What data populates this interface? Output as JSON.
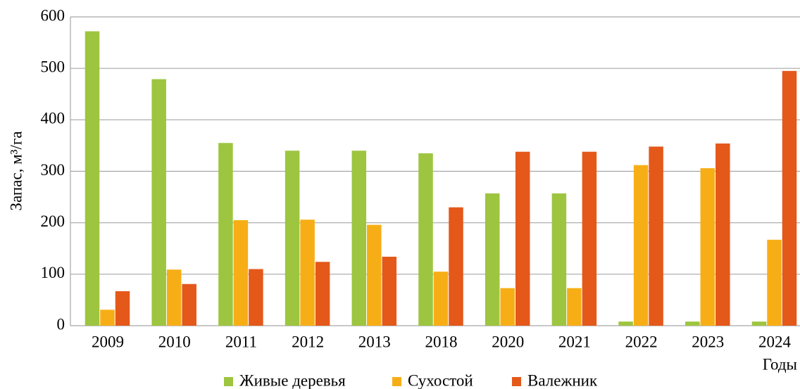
{
  "chart_data": {
    "type": "bar",
    "y_label": "Запас, м³/га",
    "x_label": "Годы",
    "categories": [
      "2009",
      "2010",
      "2011",
      "2012",
      "2013",
      "2018",
      "2020",
      "2021",
      "2022",
      "2023",
      "2024"
    ],
    "series": [
      {
        "name": "Живые деревья",
        "color": "#9dc53f",
        "values": [
          572,
          479,
          355,
          340,
          340,
          335,
          257,
          257,
          8,
          8,
          8
        ]
      },
      {
        "name": "Сухостой",
        "color": "#f7ae16",
        "values": [
          31,
          109,
          205,
          206,
          196,
          105,
          73,
          73,
          312,
          306,
          167
        ]
      },
      {
        "name": "Валежник",
        "color": "#e4581a",
        "values": [
          67,
          81,
          110,
          124,
          134,
          230,
          338,
          338,
          348,
          354,
          495
        ]
      }
    ],
    "ylim": [
      0,
      600
    ],
    "yticks": [
      0,
      100,
      200,
      300,
      400,
      500,
      600
    ],
    "grid": true,
    "legend": "bottom"
  }
}
